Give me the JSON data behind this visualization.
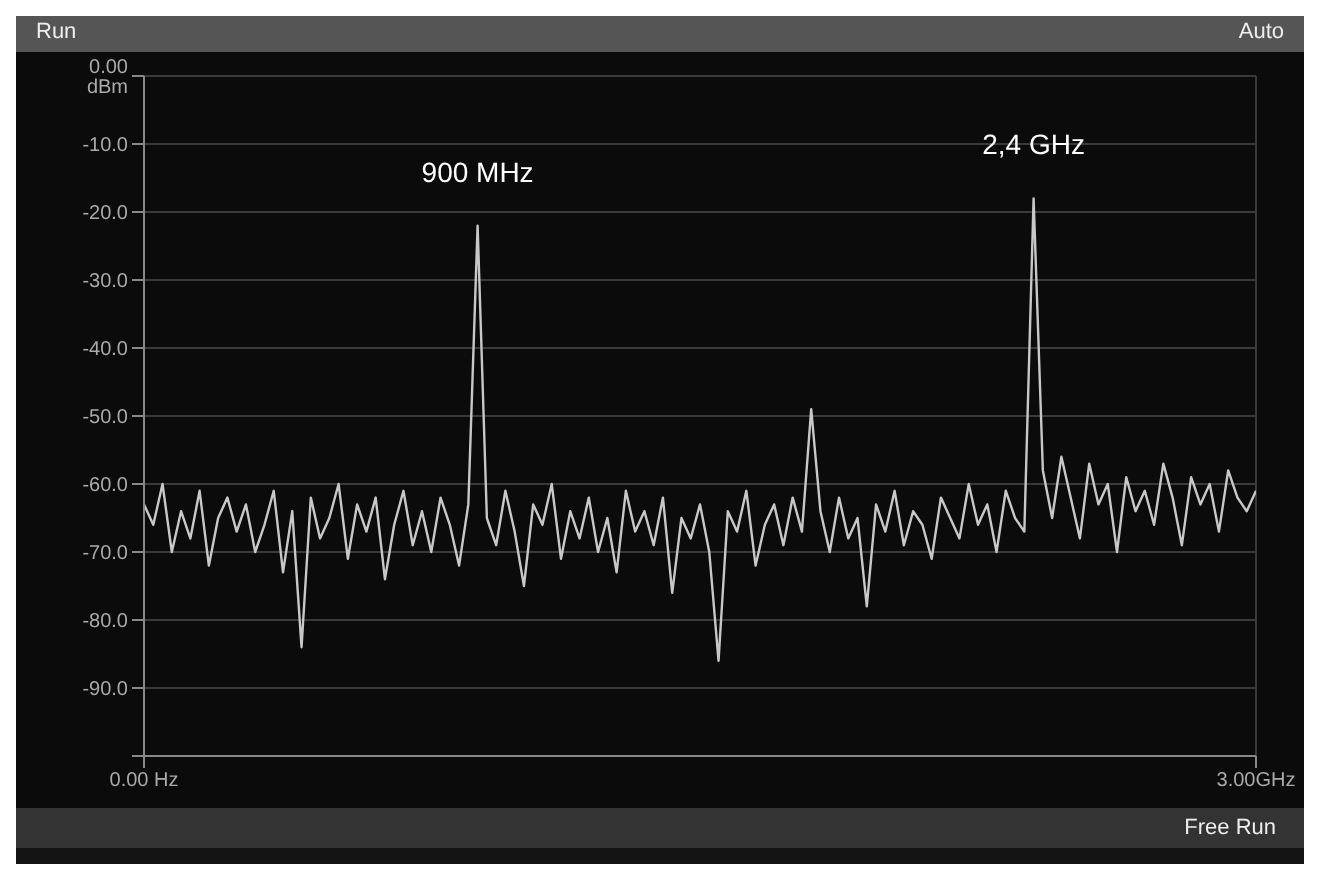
{
  "chart_data": {
    "type": "line",
    "x": [
      0,
      0.025,
      0.05,
      0.075,
      0.1,
      0.125,
      0.15,
      0.175,
      0.2,
      0.225,
      0.25,
      0.275,
      0.3,
      0.325,
      0.35,
      0.375,
      0.4,
      0.425,
      0.45,
      0.475,
      0.5,
      0.525,
      0.55,
      0.575,
      0.6,
      0.625,
      0.65,
      0.675,
      0.7,
      0.725,
      0.75,
      0.775,
      0.8,
      0.825,
      0.85,
      0.875,
      0.9,
      0.925,
      0.95,
      0.975,
      1,
      1.025,
      1.05,
      1.075,
      1.1,
      1.125,
      1.15,
      1.175,
      1.2,
      1.225,
      1.25,
      1.275,
      1.3,
      1.325,
      1.35,
      1.375,
      1.4,
      1.425,
      1.45,
      1.475,
      1.5,
      1.525,
      1.55,
      1.575,
      1.6,
      1.625,
      1.65,
      1.675,
      1.7,
      1.725,
      1.75,
      1.775,
      1.8,
      1.825,
      1.85,
      1.875,
      1.9,
      1.925,
      1.95,
      1.975,
      2,
      2.025,
      2.05,
      2.075,
      2.1,
      2.125,
      2.15,
      2.175,
      2.2,
      2.225,
      2.25,
      2.275,
      2.3,
      2.325,
      2.35,
      2.375,
      2.4,
      2.425,
      2.45,
      2.475,
      2.5,
      2.525,
      2.55,
      2.575,
      2.6,
      2.625,
      2.65,
      2.675,
      2.7,
      2.725,
      2.75,
      2.775,
      2.8,
      2.825,
      2.85,
      2.875,
      2.9,
      2.925,
      2.95,
      2.975,
      3
    ],
    "series": [
      {
        "color": "#c8c8c8",
        "values": [
          -63,
          -66,
          -60,
          -70,
          -64,
          -68,
          -61,
          -72,
          -65,
          -62,
          -67,
          -63,
          -70,
          -66,
          -61,
          -73,
          -64,
          -84,
          -62,
          -68,
          -65,
          -60,
          -71,
          -63,
          -67,
          -62,
          -74,
          -66,
          -61,
          -69,
          -64,
          -70,
          -62,
          -66,
          -72,
          -63,
          -22,
          -65,
          -69,
          -61,
          -67,
          -75,
          -63,
          -66,
          -60,
          -71,
          -64,
          -68,
          -62,
          -70,
          -65,
          -73,
          -61,
          -67,
          -64,
          -69,
          -62,
          -76,
          -65,
          -68,
          -63,
          -70,
          -86,
          -64,
          -67,
          -61,
          -72,
          -66,
          -63,
          -69,
          -62,
          -67,
          -49,
          -64,
          -70,
          -62,
          -68,
          -65,
          -78,
          -63,
          -67,
          -61,
          -69,
          -64,
          -66,
          -71,
          -62,
          -65,
          -68,
          -60,
          -66,
          -63,
          -70,
          -61,
          -65,
          -67,
          -18,
          -58,
          -65,
          -56,
          -62,
          -68,
          -57,
          -63,
          -60,
          -70,
          -59,
          -64,
          -61,
          -66,
          -57,
          -62,
          -69,
          -59,
          -63,
          -60,
          -67,
          -58,
          -62,
          -64,
          -61
        ]
      }
    ],
    "xlim": [
      0,
      3
    ],
    "xticks": [
      {
        "value": 0,
        "label": "0.00 Hz"
      },
      {
        "value": 3,
        "label": "3.00GHz"
      }
    ],
    "ylim": [
      -100,
      0
    ],
    "yticks": [
      {
        "value": 0,
        "label": "0.00 dBm"
      },
      {
        "value": -10,
        "label": "-10.0"
      },
      {
        "value": -20,
        "label": "-20.0"
      },
      {
        "value": -30,
        "label": "-30.0"
      },
      {
        "value": -40,
        "label": "-40.0"
      },
      {
        "value": -50,
        "label": "-50.0"
      },
      {
        "value": -60,
        "label": "-60.0"
      },
      {
        "value": -70,
        "label": "-70.0"
      },
      {
        "value": -80,
        "label": "-80.0"
      },
      {
        "value": -90,
        "label": "-90.0"
      },
      {
        "value": -100,
        "label": null
      }
    ],
    "grid": true,
    "marker": "none",
    "line_style": "solid",
    "annotations": [
      {
        "text": "900 MHz",
        "x": 0.9,
        "y": -22
      },
      {
        "text": "2,4 GHz",
        "x": 2.4,
        "y": -18
      },
      "Run",
      "Auto",
      "Free Run"
    ]
  }
}
